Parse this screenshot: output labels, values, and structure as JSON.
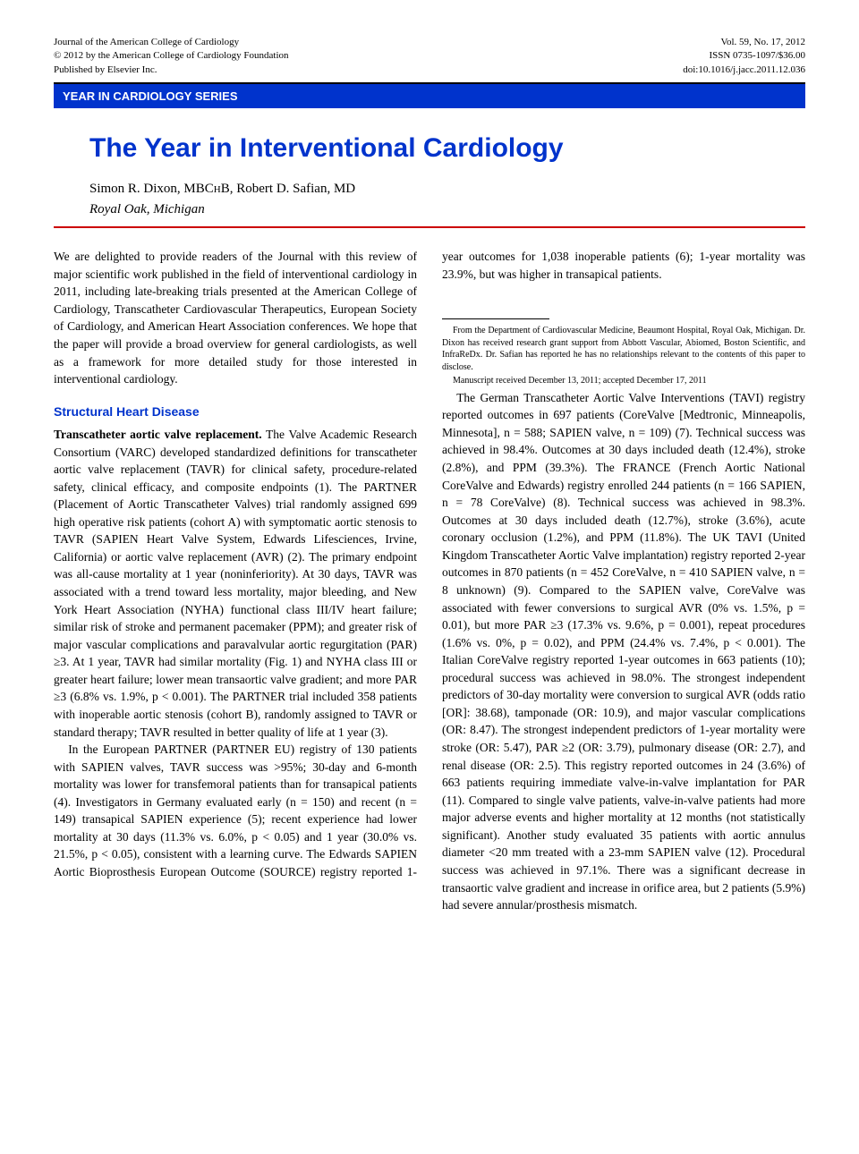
{
  "meta": {
    "journal": "Journal of the American College of Cardiology",
    "copyright": "© 2012 by the American College of Cardiology Foundation",
    "publisher": "Published by Elsevier Inc.",
    "volume": "Vol. 59, No. 17, 2012",
    "issn": "ISSN 0735-1097/$36.00",
    "doi": "doi:10.1016/j.jacc.2011.12.036"
  },
  "series_label": "YEAR IN CARDIOLOGY SERIES",
  "title": "The Year in Interventional Cardiology",
  "authors_html": "Simon R. Dixon, MBCHB, Robert D. Safian, MD",
  "affiliation": "Royal Oak, Michigan",
  "intro": "We are delighted to provide readers of the Journal with this review of major scientific work published in the field of interventional cardiology in 2011, including late-breaking trials presented at the American College of Cardiology, Transcatheter Cardiovascular Therapeutics, European Society of Cardiology, and American Heart Association conferences. We hope that the paper will provide a broad overview for general cardiologists, as well as a framework for more detailed study for those interested in interventional cardiology.",
  "section1_head": "Structural Heart Disease",
  "tavr_runin": "Transcatheter aortic valve replacement.",
  "tavr_body1": " The Valve Academic Research Consortium (VARC) developed standardized definitions for transcatheter aortic valve replacement (TAVR) for clinical safety, procedure-related safety, clinical efficacy, and composite endpoints (1). The PARTNER (Placement of Aortic Transcatheter Valves) trial randomly assigned 699 high operative risk patients (cohort A) with symptomatic aortic stenosis to TAVR (SAPIEN Heart Valve System, Edwards Lifesciences, Irvine, California) or aortic valve replacement (AVR) (2). The primary endpoint was all-cause mortality at 1 year (noninferiority). At 30 days, TAVR was associated with a trend toward less mortality, major bleeding, and New York Heart Association (NYHA) functional class III/IV heart failure; similar risk of stroke and permanent pacemaker (PPM); and greater risk of major vascular complications and paravalvular aortic regurgitation (PAR) ≥3. At 1 year, TAVR had similar mortality (Fig. 1) and NYHA class III or greater heart failure; lower mean transaortic valve gradient; and more PAR ≥3 (6.8% vs. 1.9%, p < 0.001). The PARTNER trial included 358 patients with inoperable aortic stenosis (cohort B), randomly assigned to TAVR or standard therapy; TAVR resulted in better quality of life at 1 year (3).",
  "tavr_body2": "In the European PARTNER (PARTNER EU) registry of 130 patients with SAPIEN valves, TAVR success was >95%; 30-day and 6-month mortality was lower for transfemoral patients than for transapical patients (4). Investigators in Germany evaluated early (n = 150) and recent (n = 149) transapical SAPIEN experience (5); recent experience had lower mortality at 30 days (11.3% vs. 6.0%, p < 0.05) and 1 year (30.0% vs. 21.5%, p < 0.05), consistent with a learning curve. The Edwards SAPIEN Aortic Bioprosthesis European Outcome (SOURCE) registry reported 1-year outcomes for 1,038 inoperable patients (6); 1-year mortality was 23.9%, but was higher in transapical patients.",
  "tavi_body": "The German Transcatheter Aortic Valve Interventions (TAVI) registry reported outcomes in 697 patients (CoreValve [Medtronic, Minneapolis, Minnesota], n = 588; SAPIEN valve, n = 109) (7). Technical success was achieved in 98.4%. Outcomes at 30 days included death (12.4%), stroke (2.8%), and PPM (39.3%). The FRANCE (French Aortic National CoreValve and Edwards) registry enrolled 244 patients (n = 166 SAPIEN, n = 78 CoreValve) (8). Technical success was achieved in 98.3%. Outcomes at 30 days included death (12.7%), stroke (3.6%), acute coronary occlusion (1.2%), and PPM (11.8%). The UK TAVI (United Kingdom Transcatheter Aortic Valve implantation) registry reported 2-year outcomes in 870 patients (n = 452 CoreValve, n = 410 SAPIEN valve, n = 8 unknown) (9). Compared to the SAPIEN valve, CoreValve was associated with fewer conversions to surgical AVR (0% vs. 1.5%, p = 0.01), but more PAR ≥3 (17.3% vs. 9.6%, p = 0.001), repeat procedures (1.6% vs. 0%, p = 0.02), and PPM (24.4% vs. 7.4%, p < 0.001). The Italian CoreValve registry reported 1-year outcomes in 663 patients (10); procedural success was achieved in 98.0%. The strongest independent predictors of 30-day mortality were conversion to surgical AVR (odds ratio [OR]: 38.68), tamponade (OR: 10.9), and major vascular complications (OR: 8.47). The strongest independent predictors of 1-year mortality were stroke (OR: 5.47), PAR ≥2 (OR: 3.79), pulmonary disease (OR: 2.7), and renal disease (OR: 2.5). This registry reported outcomes in 24 (3.6%) of 663 patients requiring immediate valve-in-valve implantation for PAR (11). Compared to single valve patients, valve-in-valve patients had more major adverse events and higher mortality at 12 months (not statistically significant). Another study evaluated 35 patients with aortic annulus diameter <20 mm treated with a 23-mm SAPIEN valve (12). Procedural success was achieved in 97.1%. There was a significant decrease in transaortic valve gradient and increase in orifice area, but 2 patients (5.9%) had severe annular/prosthesis mismatch.",
  "footnote": {
    "from": "From the Department of Cardiovascular Medicine, Beaumont Hospital, Royal Oak, Michigan. Dr. Dixon has received research grant support from Abbott Vascular, Abiomed, Boston Scientific, and InfraReDx. Dr. Safian has reported he has no relationships relevant to the contents of this paper to disclose.",
    "manuscript": "Manuscript received December 13, 2011; accepted December 17, 2011"
  },
  "colors": {
    "blue": "#0033cc",
    "red": "#cc0000",
    "text": "#000000",
    "bg": "#ffffff"
  }
}
